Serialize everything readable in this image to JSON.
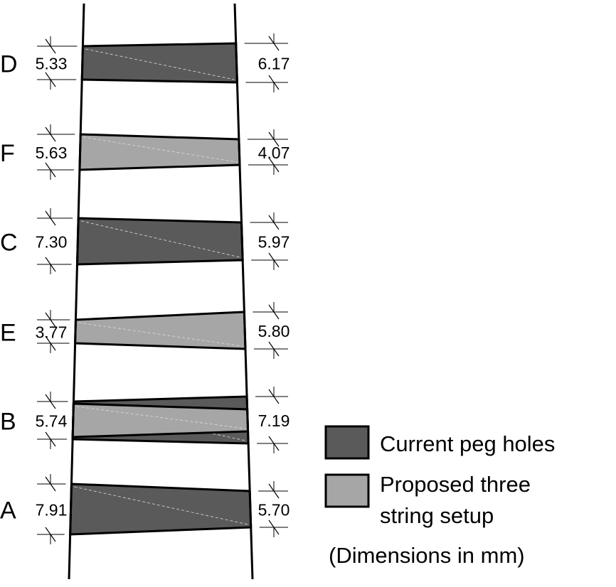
{
  "colors": {
    "current": "#5a5a5a",
    "proposed": "#a6a6a6",
    "outline": "#000000"
  },
  "strings": [
    {
      "label": "D",
      "left": "5.33",
      "right": "6.17",
      "holes": [
        "current"
      ]
    },
    {
      "label": "F",
      "left": "5.63",
      "right": "4.07",
      "holes": [
        "proposed"
      ]
    },
    {
      "label": "C",
      "left": "7.30",
      "right": "5.97",
      "holes": [
        "current"
      ]
    },
    {
      "label": "E",
      "left": "3.77",
      "right": "5.80",
      "holes": [
        "proposed"
      ]
    },
    {
      "label": "B",
      "left": "5.74",
      "right": "7.19",
      "holes": [
        "current",
        "proposed"
      ]
    },
    {
      "label": "A",
      "left": "7.91",
      "right": "5.70",
      "holes": [
        "current"
      ]
    }
  ],
  "legend": {
    "current": "Current peg holes",
    "proposed_line1": "Proposed three",
    "proposed_line2": "string setup",
    "note": "(Dimensions in mm)"
  }
}
